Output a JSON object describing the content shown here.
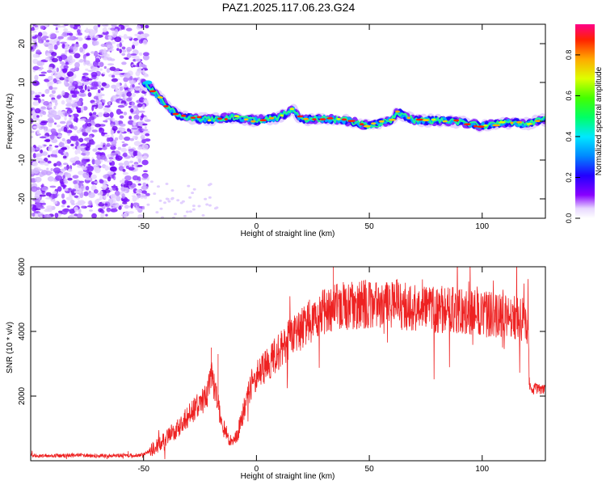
{
  "figure": {
    "title": "PAZ1.2025.117.06.23.G24"
  },
  "colors": {
    "snr_line": "#ee2222",
    "axis": "#000000"
  },
  "chart_data": [
    {
      "type": "heatmap",
      "xlabel": "Height of straight line (km)",
      "ylabel": "Frequency (Hz)",
      "xlim": [
        -100,
        128
      ],
      "ylim": [
        -25,
        25
      ],
      "xticks": [
        -50,
        0,
        50,
        100
      ],
      "yticks": [
        -20,
        -10,
        0,
        10,
        20
      ],
      "colorbar": {
        "label": "Normalized spectral amplitude",
        "range": [
          0,
          0.95
        ],
        "ticks": [
          "0.0",
          "0.2",
          "0.4",
          "0.6",
          "0.8"
        ]
      },
      "ridge": {
        "x": [
          -50,
          -45,
          -40,
          -35,
          -30,
          -20,
          -10,
          0,
          10,
          16,
          20,
          30,
          40,
          50,
          60,
          62,
          70,
          80,
          90,
          100,
          110,
          120,
          128
        ],
        "y": [
          10,
          7.5,
          4,
          1.5,
          0.8,
          0.5,
          1,
          0.2,
          1,
          3,
          0.5,
          0.6,
          0.2,
          -1.2,
          0.2,
          2.5,
          0.2,
          0.2,
          -0.2,
          -1.2,
          -0.3,
          -0.6,
          0.5
        ]
      },
      "noise_region": {
        "x_range": [
          -100,
          -48
        ]
      }
    },
    {
      "type": "line",
      "xlabel": "Height of straight line (km)",
      "ylabel": "SNR (10 * v/v)",
      "xlim": [
        -100,
        128
      ],
      "ylim": [
        0,
        6000
      ],
      "xticks": [
        -50,
        0,
        50,
        100
      ],
      "yticks": [
        2000,
        4000,
        6000
      ],
      "x": [
        -100,
        -90,
        -80,
        -70,
        -60,
        -50,
        -45,
        -40,
        -35,
        -30,
        -25,
        -22,
        -20,
        -18,
        -16,
        -14,
        -12,
        -10,
        -8,
        -6,
        -4,
        -2,
        0,
        5,
        10,
        15,
        20,
        25,
        30,
        35,
        40,
        50,
        60,
        70,
        80,
        90,
        100,
        110,
        118,
        120,
        121,
        125,
        128
      ],
      "y": [
        150,
        160,
        170,
        150,
        160,
        180,
        400,
        700,
        1000,
        1400,
        1800,
        2000,
        2600,
        2100,
        1400,
        900,
        700,
        500,
        900,
        1500,
        2000,
        2400,
        2600,
        3000,
        3400,
        3800,
        4100,
        4400,
        4650,
        4750,
        4800,
        4850,
        4800,
        4750,
        4700,
        4650,
        4550,
        4450,
        4400,
        4300,
        2250,
        2250,
        2200
      ],
      "peaks": [
        {
          "x": -20,
          "y": 3500
        },
        {
          "x": -17,
          "y": 3300
        },
        {
          "x": 34,
          "y": 6000
        },
        {
          "x": 62,
          "y": 5600
        }
      ]
    }
  ]
}
